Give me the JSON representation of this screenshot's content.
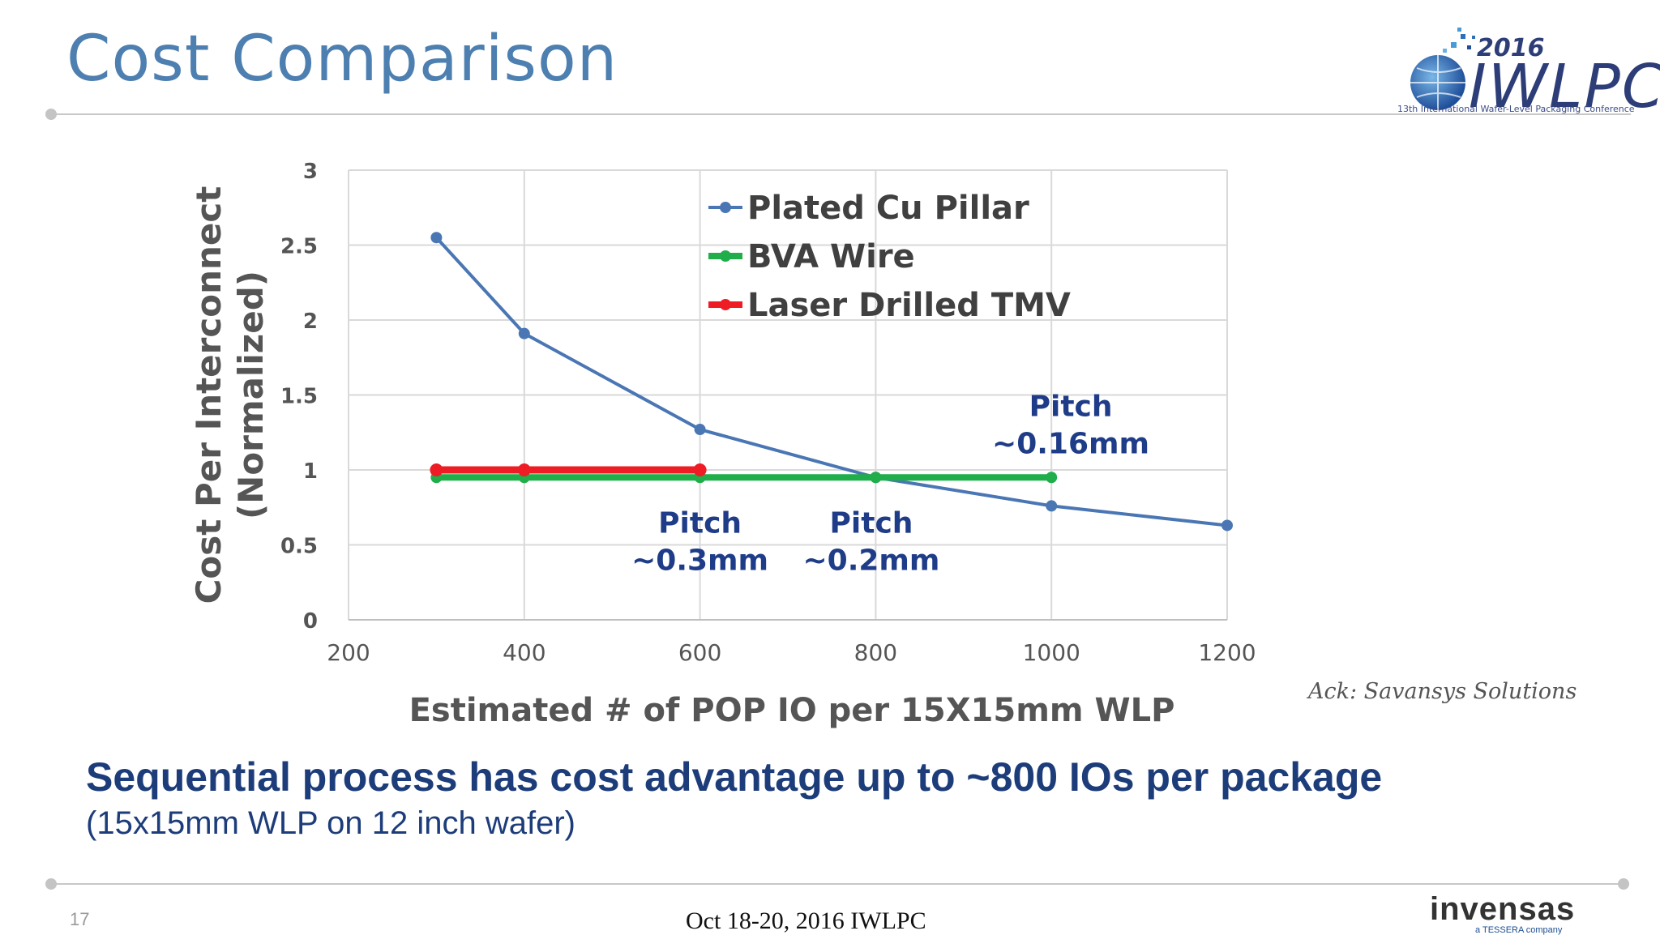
{
  "slide": {
    "title": "Cost Comparison",
    "ack": "Ack: Savansys Solutions",
    "headline": "Sequential process has cost advantage up to ~800 IOs per package",
    "subline": "(15x15mm WLP on 12 inch wafer)",
    "page_number": "17",
    "footer": "Oct 18-20, 2016 IWLPC"
  },
  "logos": {
    "iwlpc": {
      "year": "2016",
      "name": "IWLPC",
      "subtitle": "13th International Wafer-Level Packaging Conference"
    },
    "invensas": {
      "name": "invensas",
      "tagline": "a TESSERA company"
    }
  },
  "colors": {
    "title": "#4d7fb0",
    "headline": "#1d3d7a",
    "annotation": "#1f3c88",
    "axis_text": "#555555",
    "grid": "#d9d9d9"
  },
  "chart_data": {
    "type": "line",
    "xlabel": "Estimated # of POP IO per 15X15mm WLP",
    "ylabel": [
      "Cost Per Interconnect",
      "(Normalized)"
    ],
    "xlim": [
      200,
      1200
    ],
    "ylim": [
      0,
      3
    ],
    "xticks": [
      200,
      400,
      600,
      800,
      1000,
      1200
    ],
    "yticks": [
      0,
      0.5,
      1,
      1.5,
      2,
      2.5,
      3
    ],
    "ytick_labels": [
      "0",
      "0.5",
      "1",
      "1.5",
      "2",
      "2.5",
      "3"
    ],
    "grid": true,
    "legend_position": "top-center",
    "series": [
      {
        "name": "Plated Cu Pillar",
        "color": "#4a76b4",
        "x": [
          300,
          400,
          600,
          800,
          1000,
          1200
        ],
        "y": [
          2.55,
          1.91,
          1.27,
          0.95,
          0.76,
          0.63
        ]
      },
      {
        "name": "BVA Wire",
        "color": "#1fae4a",
        "x": [
          300,
          400,
          600,
          800,
          1000
        ],
        "y": [
          0.95,
          0.95,
          0.95,
          0.95,
          0.95
        ]
      },
      {
        "name": "Laser Drilled TMV",
        "color": "#ee1c24",
        "x": [
          300,
          400,
          600
        ],
        "y": [
          1.0,
          1.0,
          1.0
        ]
      }
    ],
    "annotations": [
      {
        "lines": [
          "Pitch",
          "~0.3mm"
        ],
        "x": 600,
        "y": 0.58
      },
      {
        "lines": [
          "Pitch",
          "~0.2mm"
        ],
        "x": 795,
        "y": 0.58
      },
      {
        "lines": [
          "Pitch",
          "~0.16mm"
        ],
        "x": 1022,
        "y": 1.36
      }
    ]
  }
}
